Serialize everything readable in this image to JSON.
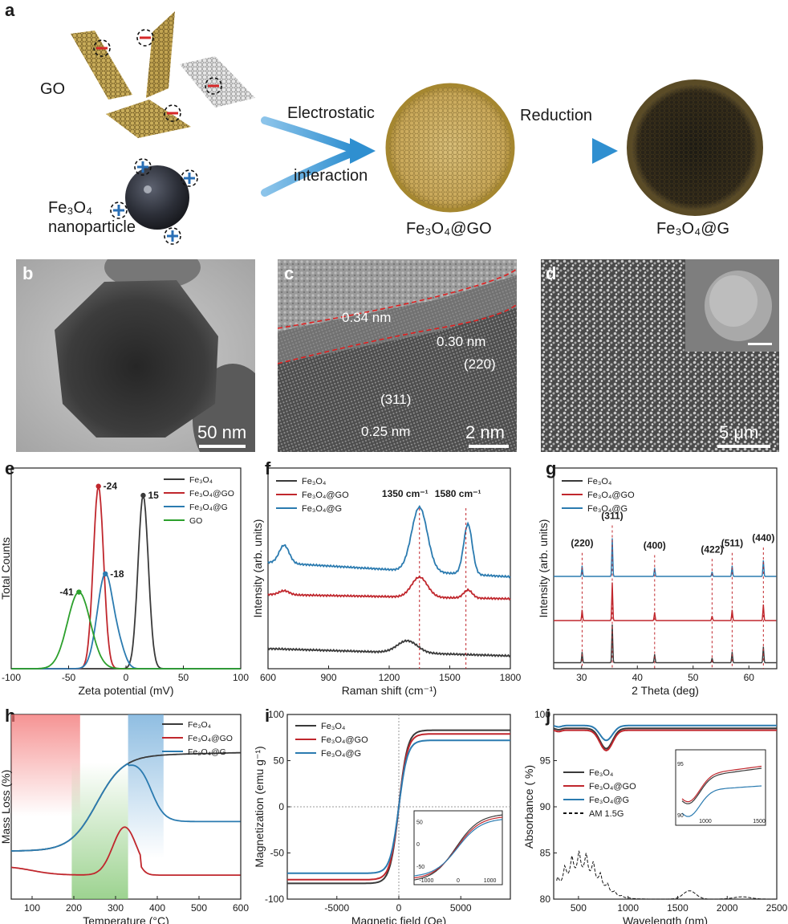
{
  "panel_a": {
    "label": "a",
    "go": "GO",
    "fe3o4_line1": "Fe₃O₄",
    "fe3o4_line2": "nanoparticle",
    "arrow1_top": "Electrostatic",
    "arrow1_bottom": "interaction",
    "arrow2": "Reduction",
    "product1": "Fe₃O₄@GO",
    "product2": "Fe₃O₄@G",
    "colors": {
      "arrow": "#2f8fd0",
      "go_sheet": "#b59a3a",
      "negative": "#d62728",
      "positive": "#2a6fb5",
      "particle": "#2b2d33"
    }
  },
  "panel_b": {
    "label": "b",
    "scale": "50 nm"
  },
  "panel_c": {
    "label": "c",
    "d1": "0.34 nm",
    "d2": "0.30 nm",
    "hkl1": "(220)",
    "hkl2": "(311)",
    "d3": "0.25 nm",
    "scale": "2 nm"
  },
  "panel_d": {
    "label": "d",
    "scale": "5 μm"
  },
  "chart_data": [
    {
      "id": "e",
      "type": "line",
      "label": "e",
      "xlabel": "Zeta potential (mV)",
      "ylabel": "Total Counts",
      "xlim": [
        -100,
        100
      ],
      "xticks": [
        "-100",
        "-50",
        "0",
        "50",
        "100"
      ],
      "legend": [
        "Fe₃O₄",
        "Fe₃O₄@GO",
        "Fe₃O₄@G",
        "GO"
      ],
      "legend_position": "top-right",
      "annotations": [
        "15",
        "-24",
        "-18",
        "-41"
      ],
      "series": [
        {
          "name": "Fe₃O₄",
          "color": "#3a3a3a",
          "peak": 15,
          "peak_rel": 0.95
        },
        {
          "name": "Fe₃O₄@GO",
          "color": "#c0272d",
          "peak": -24,
          "peak_rel": 1.0
        },
        {
          "name": "Fe₃O₄@G",
          "color": "#2b7bb0",
          "peak": -18,
          "peak_rel": 0.52
        },
        {
          "name": "GO",
          "color": "#2ca02c",
          "peak": -41,
          "peak_rel": 0.42
        }
      ]
    },
    {
      "id": "f",
      "type": "line",
      "label": "f",
      "xlabel": "Raman shift (cm⁻¹)",
      "ylabel": "Intensity (arb. units)",
      "xlim": [
        600,
        1800
      ],
      "xticks": [
        "600",
        "900",
        "1200",
        "1500",
        "1800"
      ],
      "legend": [
        "Fe₃O₄",
        "Fe₃O₄@GO",
        "Fe₃O₄@G"
      ],
      "legend_position": "top-left",
      "annotations": [
        "1350 cm⁻¹",
        "1580 cm⁻¹"
      ],
      "peaks": [
        1350,
        1580
      ]
    },
    {
      "id": "g",
      "type": "line",
      "label": "g",
      "xlabel": "2 Theta (deg)",
      "ylabel": "Intensity (arb. units)",
      "xlim": [
        25,
        65
      ],
      "xticks": [
        "30",
        "40",
        "50",
        "60"
      ],
      "legend": [
        "Fe₃O₄",
        "Fe₃O₄@GO",
        "Fe₃O₄@G"
      ],
      "legend_position": "top-left",
      "peaks": [
        {
          "hkl": "(220)",
          "x": 30.1,
          "rel": 0.28
        },
        {
          "hkl": "(311)",
          "x": 35.5,
          "rel": 1.0
        },
        {
          "hkl": "(400)",
          "x": 43.1,
          "rel": 0.22
        },
        {
          "hkl": "(422)",
          "x": 53.4,
          "rel": 0.12
        },
        {
          "hkl": "(511)",
          "x": 57.0,
          "rel": 0.28
        },
        {
          "hkl": "(440)",
          "x": 62.6,
          "rel": 0.42
        }
      ]
    },
    {
      "id": "h",
      "type": "line",
      "label": "h",
      "xlabel": "Temperature (°C)",
      "ylabel": "Mass Loss (%)",
      "xlim": [
        50,
        600
      ],
      "xticks": [
        "100",
        "200",
        "300",
        "400",
        "500",
        "600"
      ],
      "legend": [
        "Fe₃O₄",
        "Fe₃O₄@GO",
        "Fe₃O₄@G"
      ],
      "legend_position": "top-right",
      "shaded_regions": [
        {
          "x": [
            50,
            215
          ],
          "color": "#f27070"
        },
        {
          "x": [
            195,
            330
          ],
          "color": "#7cc46b"
        },
        {
          "x": [
            330,
            415
          ],
          "color": "#6aa8d8"
        }
      ]
    },
    {
      "id": "i",
      "type": "line",
      "label": "i",
      "xlabel": "Magnetic field (Oe)",
      "ylabel": "Magnetization (emu g⁻¹)",
      "xlim": [
        -9000,
        9000
      ],
      "ylim": [
        -100,
        100
      ],
      "xticks": [
        "-5000",
        "0",
        "5000"
      ],
      "yticks": [
        "-100",
        "-50",
        "0",
        "50",
        "100"
      ],
      "legend": [
        "Fe₃O₄",
        "Fe₃O₄@GO",
        "Fe₃O₄@G"
      ],
      "legend_position": "top-left",
      "saturation": [
        {
          "name": "Fe₃O₄",
          "ms": 83
        },
        {
          "name": "Fe₃O₄@GO",
          "ms": 79
        },
        {
          "name": "Fe₃O₄@G",
          "ms": 72
        }
      ],
      "inset": {
        "xticks": [
          "-1000",
          "0",
          "1000"
        ],
        "yticks": [
          "-50",
          "0",
          "50"
        ]
      }
    },
    {
      "id": "j",
      "type": "line",
      "label": "j",
      "xlabel": "Wavelength (nm)",
      "ylabel": "Absorbance ( %)",
      "xlim": [
        250,
        2500
      ],
      "ylim": [
        80,
        100
      ],
      "xticks": [
        "500",
        "1000",
        "1500",
        "2000",
        "2500"
      ],
      "yticks": [
        "80",
        "85",
        "90",
        "95",
        "100"
      ],
      "legend": [
        "Fe₃O₄",
        "Fe₃O₄@GO",
        "Fe₃O₄@G",
        "AM 1.5G"
      ],
      "legend_position": "center-left",
      "inset": {
        "xticks": [
          "1000",
          "1500"
        ],
        "yticks": [
          "95",
          "90"
        ]
      }
    }
  ]
}
